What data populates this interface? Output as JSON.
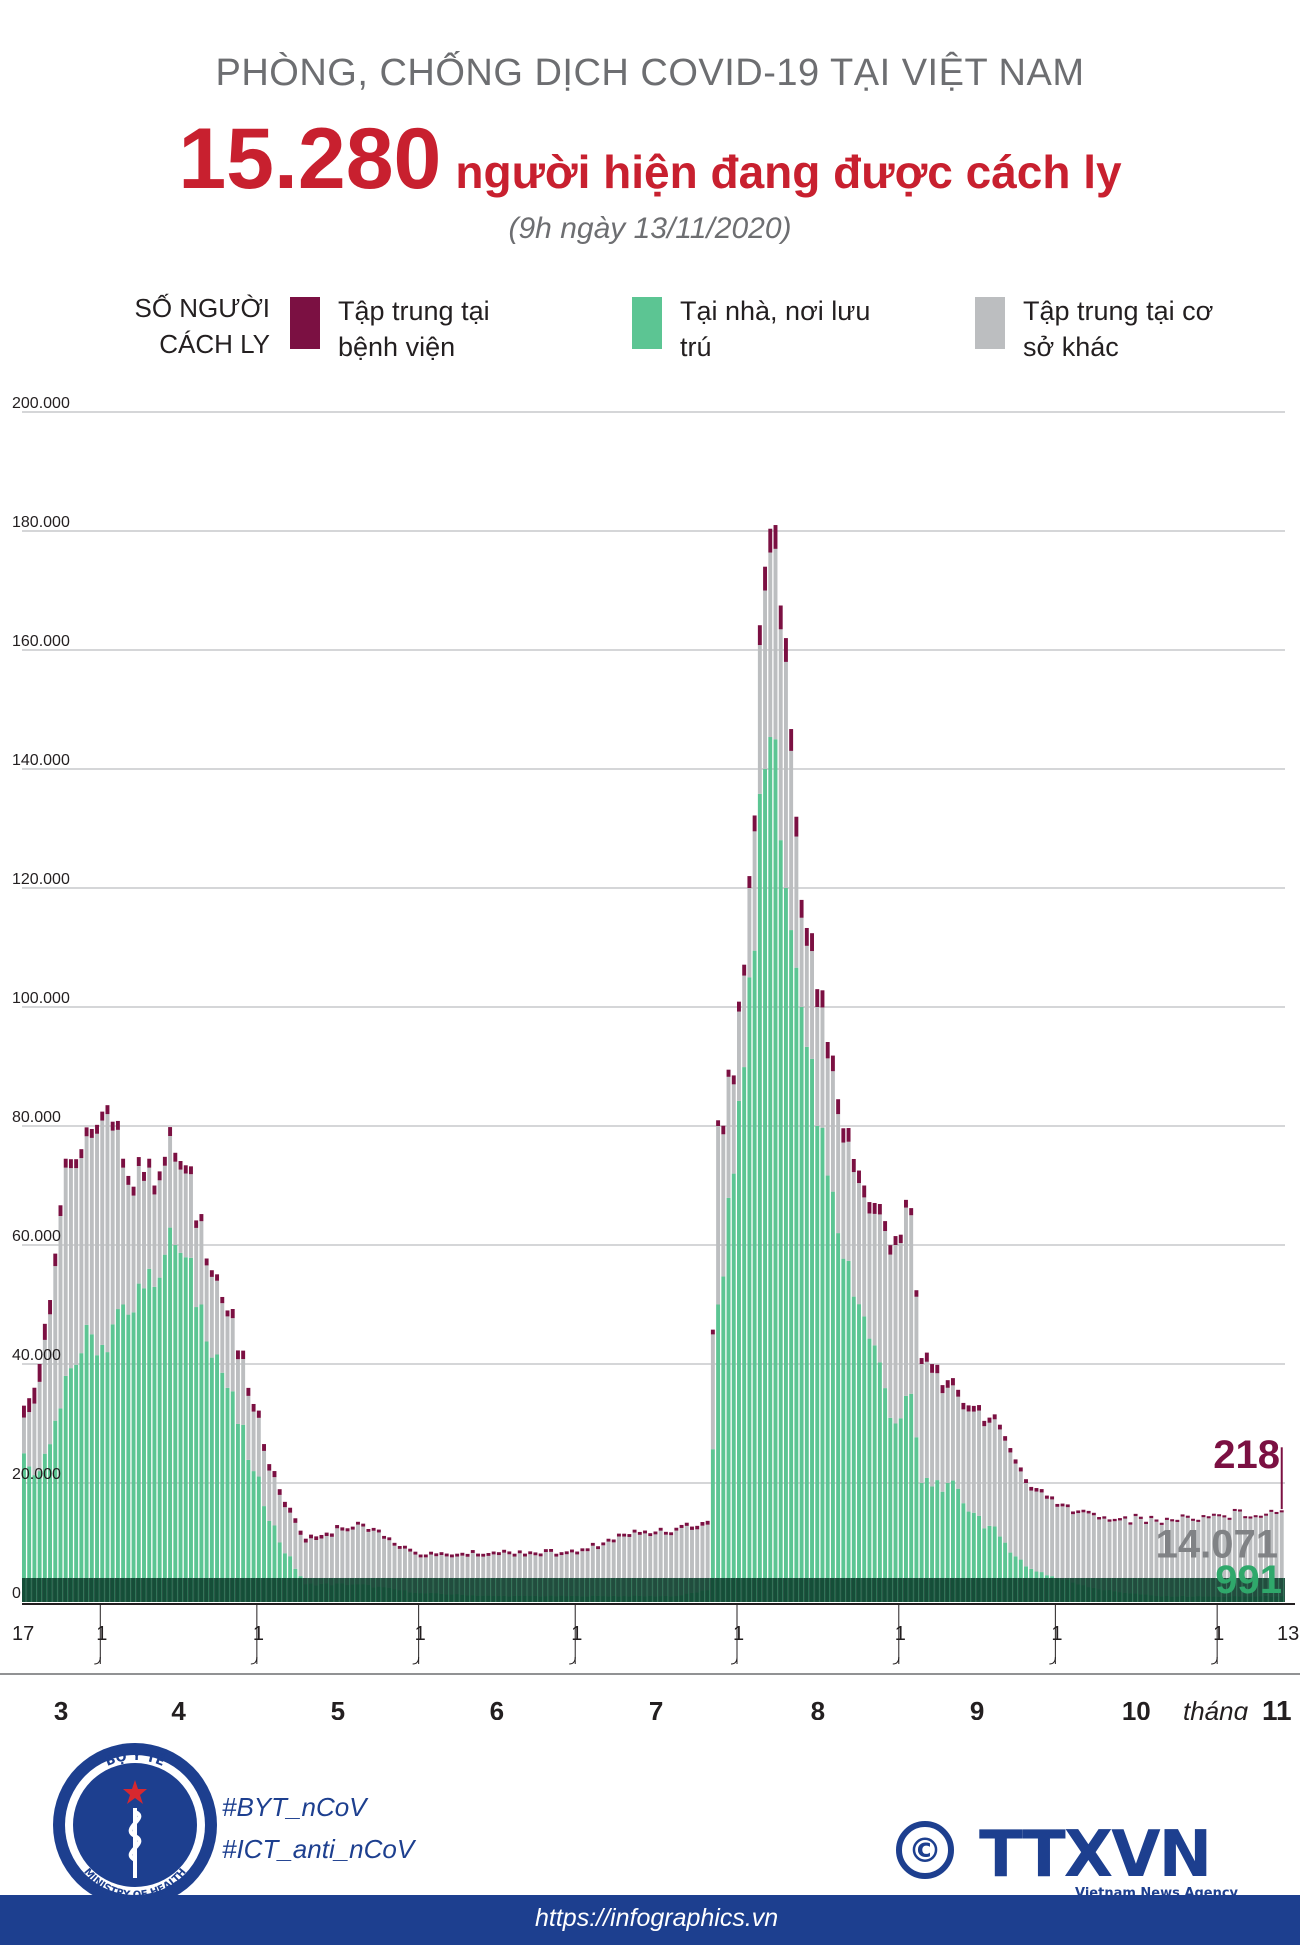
{
  "header": {
    "supertitle": "PHÒNG, CHỐNG DỊCH COVID-19 TẠI VIỆT NAM",
    "headline_number": "15.280",
    "headline_text": "người hiện đang được cách ly",
    "subtitle": "(9h ngày 13/11/2020)"
  },
  "legend": {
    "title": "SỐ NGƯỜI CÁCH LY",
    "items": [
      {
        "label": "Tập trung tại bệnh viện",
        "color": "#7b1042"
      },
      {
        "label": "Tại nhà, nơi lưu trú",
        "color": "#5cc593"
      },
      {
        "label": "Tập trung tại cơ sở khác",
        "color": "#bcbec0"
      }
    ]
  },
  "chart_data": {
    "type": "bar",
    "stacked": true,
    "ylim": [
      0,
      200000
    ],
    "y_ticks": [
      "0",
      "20.000",
      "40.000",
      "60.000",
      "80.000",
      "100.000",
      "120.000",
      "140.000",
      "160.000",
      "180.000",
      "200.000"
    ],
    "grid": true,
    "legend_position": "top",
    "x_range": [
      "17/3/2020",
      "13/11/2020"
    ],
    "month_labels": [
      "3",
      "4",
      "5",
      "6",
      "7",
      "8",
      "9",
      "10"
    ],
    "last_month_prefix": "tháng",
    "last_month_label": "11",
    "day_labels": [
      "17",
      "1",
      "1",
      "1",
      "1",
      "1",
      "1",
      "1",
      "1",
      "13"
    ],
    "anchors": [
      {
        "date": "17/3",
        "hospital": 2000,
        "home": 25000,
        "other": 6000
      },
      {
        "date": "20/3",
        "hospital": 3000,
        "home": 22000,
        "other": 15000
      },
      {
        "date": "25/3",
        "hospital": 1500,
        "home": 38000,
        "other": 35000
      },
      {
        "date": "30/3",
        "hospital": 1500,
        "home": 45000,
        "other": 33000
      },
      {
        "date": "2/4",
        "hospital": 1500,
        "home": 42000,
        "other": 40000
      },
      {
        "date": "5/4",
        "hospital": 1500,
        "home": 50000,
        "other": 23000
      },
      {
        "date": "10/4",
        "hospital": 1500,
        "home": 56000,
        "other": 17000
      },
      {
        "date": "15/4",
        "hospital": 1500,
        "home": 60000,
        "other": 14000
      },
      {
        "date": "20/4",
        "hospital": 1200,
        "home": 50000,
        "other": 14000
      },
      {
        "date": "25/4",
        "hospital": 1000,
        "home": 36000,
        "other": 12000
      },
      {
        "date": "30/4",
        "hospital": 800,
        "home": 22000,
        "other": 10000
      },
      {
        "date": "5/5",
        "hospital": 600,
        "home": 10000,
        "other": 8000
      },
      {
        "date": "10/5",
        "hospital": 400,
        "home": 3000,
        "other": 7000
      },
      {
        "date": "20/5",
        "hospital": 300,
        "home": 3000,
        "other": 10000
      },
      {
        "date": "1/6",
        "hospital": 300,
        "home": 1500,
        "other": 6000
      },
      {
        "date": "15/6",
        "hospital": 300,
        "home": 1000,
        "other": 7000
      },
      {
        "date": "1/7",
        "hospital": 300,
        "home": 1000,
        "other": 7000
      },
      {
        "date": "10/7",
        "hospital": 300,
        "home": 1000,
        "other": 10000
      },
      {
        "date": "20/7",
        "hospital": 300,
        "home": 1000,
        "other": 11000
      },
      {
        "date": "26/7",
        "hospital": 400,
        "home": 2000,
        "other": 11000
      },
      {
        "date": "28/7",
        "hospital": 600,
        "home": 50000,
        "other": 30000
      },
      {
        "date": "31/7",
        "hospital": 1500,
        "home": 72000,
        "other": 15000
      },
      {
        "date": "3/8",
        "hospital": 2000,
        "home": 105000,
        "other": 15000
      },
      {
        "date": "6/8",
        "hospital": 4000,
        "home": 140000,
        "other": 30000
      },
      {
        "date": "8/8",
        "hospital": 4000,
        "home": 145000,
        "other": 32000
      },
      {
        "date": "10/8",
        "hospital": 4000,
        "home": 120000,
        "other": 38000
      },
      {
        "date": "13/8",
        "hospital": 3000,
        "home": 100000,
        "other": 15000
      },
      {
        "date": "16/8",
        "hospital": 3000,
        "home": 80000,
        "other": 20000
      },
      {
        "date": "20/8",
        "hospital": 2500,
        "home": 62000,
        "other": 20000
      },
      {
        "date": "25/8",
        "hospital": 2000,
        "home": 48000,
        "other": 20000
      },
      {
        "date": "31/8",
        "hospital": 1500,
        "home": 30000,
        "other": 30000
      },
      {
        "date": "3/9",
        "hospital": 1200,
        "home": 35000,
        "other": 30000
      },
      {
        "date": "5/9",
        "hospital": 1000,
        "home": 20000,
        "other": 20000
      },
      {
        "date": "10/9",
        "hospital": 800,
        "home": 20000,
        "other": 16000
      },
      {
        "date": "15/9",
        "hospital": 600,
        "home": 15000,
        "other": 17000
      },
      {
        "date": "20/9",
        "hospital": 500,
        "home": 11000,
        "other": 18000
      },
      {
        "date": "25/9",
        "hospital": 400,
        "home": 6000,
        "other": 14000
      },
      {
        "date": "1/10",
        "hospital": 300,
        "home": 4000,
        "other": 12000
      },
      {
        "date": "10/10",
        "hospital": 250,
        "home": 2000,
        "other": 12000
      },
      {
        "date": "20/10",
        "hospital": 230,
        "home": 1000,
        "other": 12500
      },
      {
        "date": "1/11",
        "hospital": 220,
        "home": 900,
        "other": 13500
      },
      {
        "date": "13/11",
        "hospital": 218,
        "home": 991,
        "other": 14071
      }
    ],
    "annotations": [
      {
        "text": "218",
        "series": "hospital",
        "color": "#7b1042"
      },
      {
        "text": "14.071",
        "series": "other",
        "color": "#808285"
      },
      {
        "text": "991",
        "series": "home",
        "color": "#2fa86b"
      }
    ]
  },
  "footer": {
    "hashtag1": "#BYT_nCoV",
    "hashtag2": "#ICT_anti_nCoV",
    "url": "https://infographics.vn",
    "moh_top": "BỘ Y TẾ",
    "moh_bottom": "MINISTRY OF HEALTH",
    "copyright_symbol": "©",
    "agency_logo": "TTXVN",
    "agency_name": "Vietnam News Agency"
  }
}
